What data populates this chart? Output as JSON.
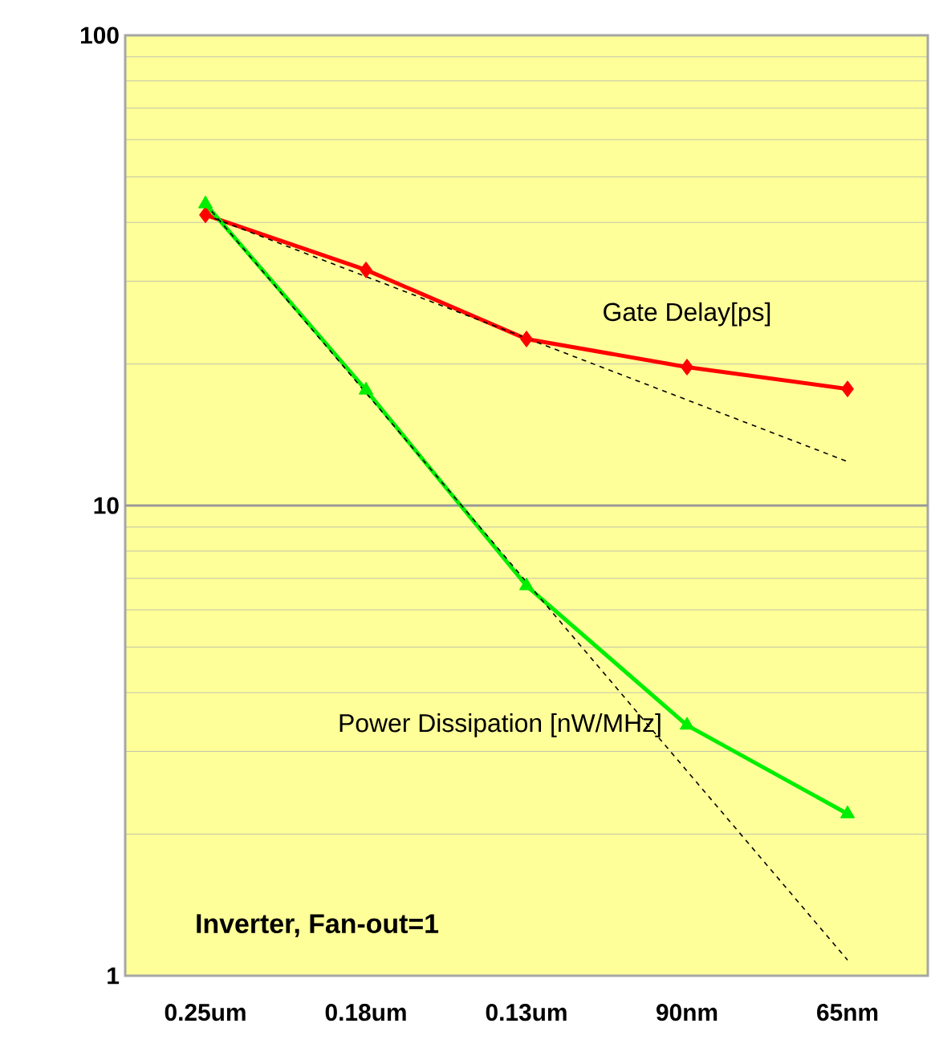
{
  "chart_data": {
    "type": "line",
    "categories": [
      "0.25um",
      "0.18um",
      "0.13um",
      "90nm",
      "65nm"
    ],
    "series": [
      {
        "name": "Gate Delay[ps]",
        "color": "#ff0000",
        "marker": "diamond",
        "values": [
          41.5,
          31.7,
          22.6,
          19.7,
          17.7
        ]
      },
      {
        "name": "Power Dissipation [nW/MHz]",
        "color": "#00ee00",
        "marker": "triangle",
        "values": [
          43.8,
          17.6,
          6.75,
          3.41,
          2.21
        ]
      },
      {
        "color": "#000000",
        "marker": "none",
        "line_style": "dashed",
        "values": [
          41.5,
          null,
          null,
          null,
          12.4
        ]
      },
      {
        "color": "#000000",
        "marker": "none",
        "line_style": "dashed",
        "values": [
          43.8,
          null,
          null,
          null,
          1.08
        ]
      }
    ],
    "ref_lines": [
      {
        "axis": "y",
        "value": 10,
        "color": "#999999"
      }
    ],
    "log": "y",
    "ylim": [
      1,
      100
    ],
    "yticks": [
      1,
      10,
      100
    ],
    "grid": "y",
    "legend": false,
    "annotations": [
      "Inverter, Fan-out=1"
    ]
  }
}
